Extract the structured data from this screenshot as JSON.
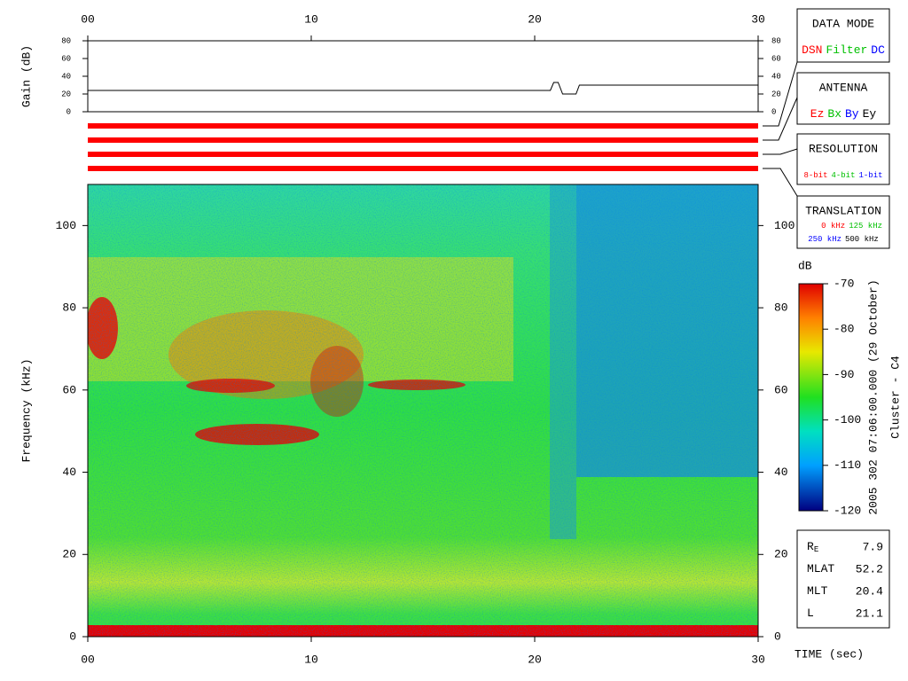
{
  "chart_data": [
    {
      "type": "line",
      "ylabel": "Gain (dB)",
      "x": [
        0,
        20.7,
        20.85,
        21.05,
        21.25,
        21.85,
        22.0,
        30
      ],
      "series": [
        {
          "color": "#000000",
          "values": [
            24,
            24,
            33,
            33,
            20,
            20,
            30,
            30
          ]
        }
      ],
      "xlim": [
        0,
        30
      ],
      "xticks": [
        {
          "value": 0,
          "label": "00"
        },
        10,
        20,
        30
      ],
      "ylim": [
        0,
        80
      ],
      "yticks": [
        0,
        20,
        40,
        60,
        80
      ]
    },
    {
      "type": "heatmap",
      "ylabel": "Frequency (kHz)",
      "xlabel": "TIME (sec)",
      "xlim": [
        0,
        30
      ],
      "xticks": [
        {
          "value": 0,
          "label": "00"
        },
        10,
        20,
        30
      ],
      "ylim": [
        0,
        110
      ],
      "yticks": [
        0,
        20,
        40,
        60,
        80,
        100
      ],
      "colorbar": {
        "label": "dB",
        "lim": [
          -120,
          -70
        ],
        "ticks": [
          -70,
          -80,
          -90,
          -100,
          -110,
          -120
        ]
      },
      "annotations": [
        "2005 302 07:06:00.000 (29 October)",
        "Cluster - C4"
      ]
    }
  ],
  "panels": [
    {
      "title": "DATA MODE",
      "items": [
        {
          "name": "DSN",
          "color": "#ff0000"
        },
        {
          "name": "Filter",
          "color": "#00c000"
        },
        {
          "name": "DC",
          "color": "#0000ff"
        }
      ]
    },
    {
      "title": "ANTENNA",
      "items": [
        {
          "name": "Ez",
          "color": "#ff0000"
        },
        {
          "name": "Bx",
          "color": "#00c000"
        },
        {
          "name": "By",
          "color": "#0000ff"
        },
        {
          "name": "Ey",
          "color": "#000000"
        }
      ]
    },
    {
      "title": "RESOLUTION",
      "items": [
        {
          "name": "8-bit",
          "color": "#ff0000"
        },
        {
          "name": "4-bit",
          "color": "#00c000"
        },
        {
          "name": "1-bit",
          "color": "#0000ff"
        }
      ]
    },
    {
      "title": "TRANSLATION",
      "items": [
        {
          "name": "0 kHz",
          "color": "#ff0000"
        },
        {
          "name": "125 kHz",
          "color": "#00c000"
        },
        {
          "name": "250 kHz",
          "color": "#0000ff"
        },
        {
          "name": "500 kHz",
          "color": "#000000"
        }
      ]
    }
  ],
  "info": [
    {
      "label": "R",
      "sub": "E",
      "value": 7.9
    },
    {
      "label": "MLAT",
      "value": 52.2
    },
    {
      "label": "MLT",
      "value": 20.4
    },
    {
      "label": "L",
      "value": 21.1
    }
  ]
}
